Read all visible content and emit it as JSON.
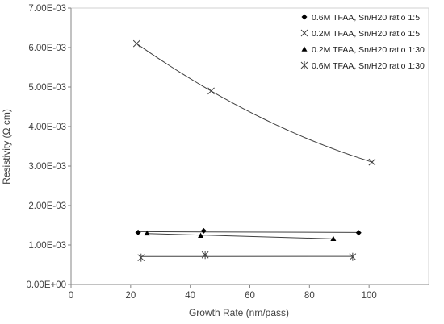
{
  "chart_data": {
    "type": "scatter",
    "xlabel": "Growth Rate (nm/pass)",
    "ylabel": "Resistivity (Ω cm)",
    "xlim": [
      0,
      120
    ],
    "ylim": [
      0,
      0.007
    ],
    "x_ticks": [
      0,
      20,
      40,
      60,
      80,
      100
    ],
    "x_tick_labels": [
      "0",
      "20",
      "40",
      "60",
      "80",
      "100"
    ],
    "y_ticks": [
      0,
      0.001,
      0.002,
      0.003,
      0.004,
      0.005,
      0.006,
      0.007
    ],
    "y_tick_labels": [
      "0.00E+00",
      "1.00E-03",
      "2.00E-03",
      "3.00E-03",
      "4.00E-03",
      "5.00E-03",
      "6.00E-03",
      "7.00E-03"
    ],
    "grid": false,
    "legend_position": "top-right",
    "series": [
      {
        "name": "0.6M TFAA, Sn/H20 ratio 1:5",
        "marker": "diamond",
        "trendline": "linear",
        "x": [
          22.5,
          44.5,
          96.5
        ],
        "y": [
          0.00132,
          0.00136,
          0.00131
        ]
      },
      {
        "name": "0.2M TFAA, Sn/H20 ratio 1:5",
        "marker": "x",
        "trendline": "curve",
        "x": [
          22,
          47,
          101
        ],
        "y": [
          0.0061,
          0.0049,
          0.0031
        ]
      },
      {
        "name": "0.2M TFAA, Sn/H20 ratio 1:30",
        "marker": "triangle",
        "trendline": "linear",
        "x": [
          25.5,
          43.5,
          88
        ],
        "y": [
          0.0013,
          0.00124,
          0.00116
        ]
      },
      {
        "name": "0.6M TFAA, Sn/H20 ratio 1:30",
        "marker": "asterisk",
        "trendline": "linear",
        "x": [
          23.5,
          45,
          94.5
        ],
        "y": [
          0.00068,
          0.00075,
          0.0007
        ]
      }
    ]
  }
}
